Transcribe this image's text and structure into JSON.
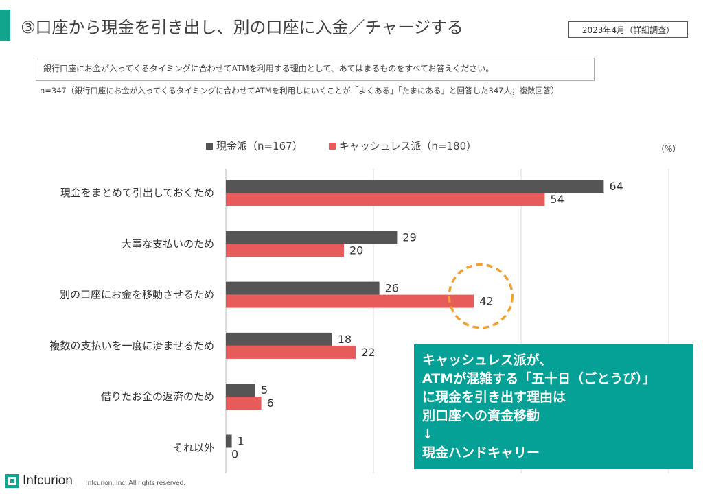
{
  "header": {
    "title": "③口座から現金を引き出し、別の口座に入金／チャージする",
    "date": "2023年4月（詳細調査）"
  },
  "question": "銀行口座にお金が入ってくるタイミングに合わせてATMを利用する理由として、あてはまるものをすべてお答えください。",
  "sample_note": "n=347（銀行口座にお金が入ってくるタイミングに合わせてATMを利用しにいくことが「よくある」「たまにある」と回答した347人；複数回答）",
  "colors": {
    "accent": "#12a58e",
    "series_cash": "#555555",
    "series_cashless": "#e85b5b",
    "callout_bg": "#05a096",
    "highlight": "#f0a030"
  },
  "chart_data": {
    "type": "bar",
    "orientation": "horizontal",
    "unit_label": "（%）",
    "categories": [
      "現金をまとめて引出しておくため",
      "大事な支払いのため",
      "別の口座にお金を移動させるため",
      "複数の支払いを一度に済ませるため",
      "借りたお金の返済のため",
      "それ以外"
    ],
    "series": [
      {
        "name": "現金派（n=167）",
        "values": [
          64,
          29,
          26,
          18,
          5,
          1
        ]
      },
      {
        "name": "キャッシュレス派（n=180）",
        "values": [
          54,
          20,
          42,
          22,
          6,
          0
        ]
      }
    ],
    "xlim": [
      0,
      75
    ],
    "grid": true,
    "legend_position": "top",
    "highlighted": {
      "category_index": 2,
      "series_index": 1
    }
  },
  "callout": {
    "lines": [
      "キャッシュレス派が、",
      "ATMが混雑する「五十日（ごとうび）」",
      "に現金を引き出す理由は",
      "別口座への資金移動",
      "↓",
      "現金ハンドキャリー"
    ]
  },
  "footer": {
    "logo_text": "Infcurion",
    "copyright": "Infcurion, Inc.  All rights reserved."
  }
}
